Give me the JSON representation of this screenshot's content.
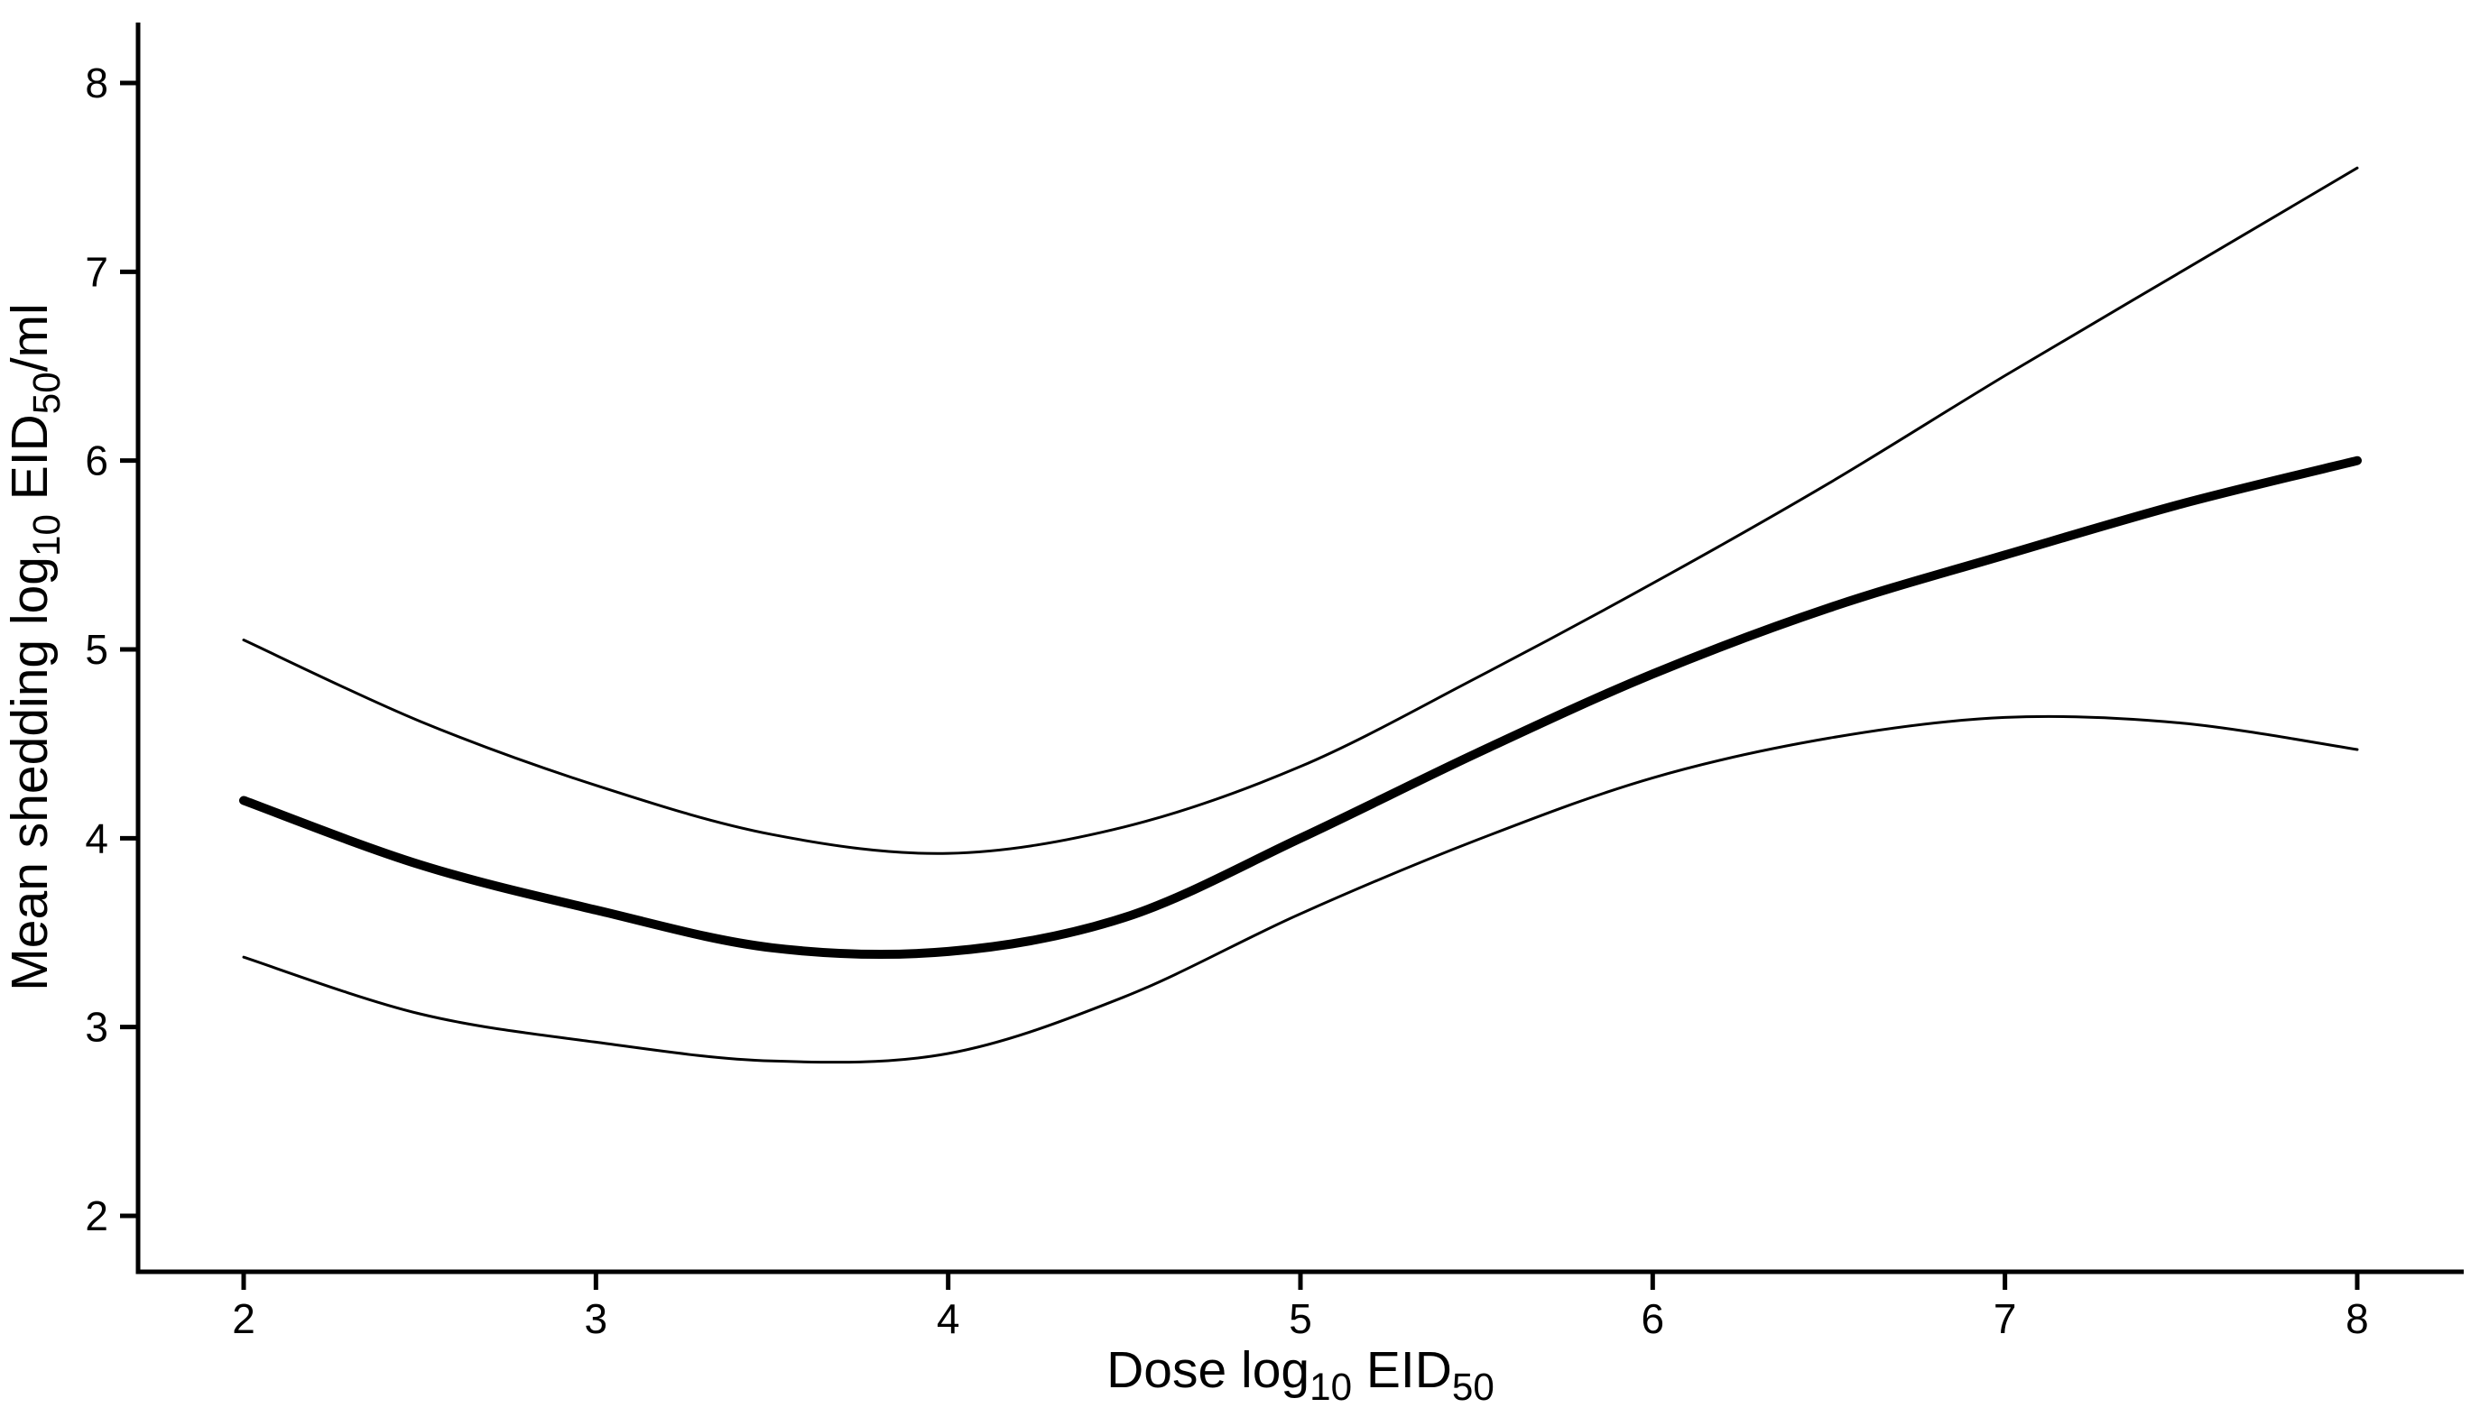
{
  "page": {
    "background": "#ffffff"
  },
  "chart_data": {
    "type": "line",
    "title": "",
    "xlabel": "Dose log10 EID50",
    "ylabel": "Mean shedding log10 EID50/ml",
    "xlabel_segments": [
      {
        "t": "Dose log"
      },
      {
        "t": "10",
        "sub": true
      },
      {
        "t": " EID"
      },
      {
        "t": "50",
        "sub": true
      }
    ],
    "ylabel_segments": [
      {
        "t": "Mean shedding log"
      },
      {
        "t": "10",
        "sub": true
      },
      {
        "t": " EID"
      },
      {
        "t": "50",
        "sub": true
      },
      {
        "t": "/ml"
      }
    ],
    "x_ticks": [
      2,
      3,
      4,
      5,
      6,
      7,
      8
    ],
    "y_ticks": [
      2,
      3,
      4,
      5,
      6,
      7,
      8
    ],
    "xlim": [
      1.7,
      8.3
    ],
    "ylim": [
      1.7,
      8.3
    ],
    "grid": false,
    "legend": false,
    "line_color": "#000000",
    "axis_color": "#000000",
    "background": "#ffffff",
    "x": [
      2,
      2.5,
      3,
      3.5,
      4,
      4.5,
      5,
      5.5,
      6,
      6.5,
      7,
      7.5,
      8
    ],
    "series": [
      {
        "name": "mean",
        "role": "fitted-mean",
        "style": "thick",
        "values": [
          4.2,
          3.86,
          3.62,
          3.42,
          3.4,
          3.58,
          4.0,
          4.45,
          4.87,
          5.22,
          5.5,
          5.77,
          6.0
        ]
      },
      {
        "name": "upper-ci",
        "role": "upper-confidence-band",
        "style": "thin",
        "values": [
          5.05,
          4.62,
          4.28,
          4.02,
          3.92,
          4.06,
          4.38,
          4.85,
          5.35,
          5.88,
          6.45,
          7.0,
          7.55
        ]
      },
      {
        "name": "lower-ci",
        "role": "lower-confidence-band",
        "style": "thin",
        "values": [
          3.37,
          3.07,
          2.92,
          2.82,
          2.86,
          3.16,
          3.6,
          3.99,
          4.32,
          4.53,
          4.64,
          4.61,
          4.47
        ]
      }
    ]
  }
}
